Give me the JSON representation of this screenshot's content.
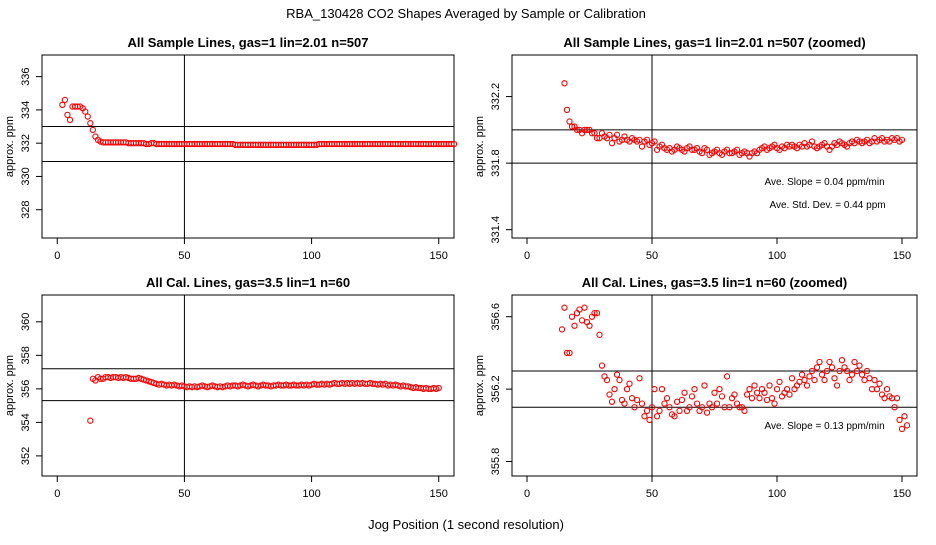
{
  "page": {
    "title": "RBA_130428  CO2 Shapes Averaged by Sample or Calibration",
    "xlabel": "Jog Position (1 second resolution)"
  },
  "chart_data": [
    {
      "type": "scatter",
      "title": "All Sample Lines, gas=1 lin=2.01 n=507",
      "ylabel": "approx. ppm",
      "xlim": [
        -6,
        156
      ],
      "ylim": [
        326.3,
        337.3
      ],
      "xticks": [
        0,
        50,
        100,
        150
      ],
      "yticks": [
        328,
        330,
        332,
        334,
        336
      ],
      "ytick_labels": [
        "328",
        "330",
        "332",
        "334",
        "336"
      ],
      "hlines": [
        333.0,
        330.9
      ],
      "vline": 50,
      "color": "#ff0000",
      "annotations": [],
      "x_start": 2,
      "values": [
        334.3,
        334.6,
        333.7,
        333.4,
        334.2,
        334.2,
        334.2,
        334.2,
        334.1,
        333.9,
        333.6,
        333.2,
        332.8,
        332.4,
        332.2,
        332.1,
        332.05,
        332.05,
        332.05,
        332.05,
        332.05,
        332.05,
        332.05,
        332.05,
        332.05,
        332.05,
        332.0,
        332.0,
        332.0,
        332.0,
        332.0,
        332.0,
        332.0,
        331.95,
        331.95,
        332.0,
        332.0,
        331.95,
        331.95,
        331.95,
        331.95,
        331.95,
        331.95,
        331.95,
        331.95,
        331.95,
        331.95,
        331.95,
        331.95,
        331.95,
        331.95,
        331.95,
        331.95,
        331.95,
        331.95,
        331.95,
        331.95,
        331.95,
        331.95,
        331.95,
        331.95,
        331.95,
        331.95,
        331.95,
        331.95,
        331.95,
        331.95,
        331.95,
        331.9,
        331.9,
        331.9,
        331.9,
        331.9,
        331.9,
        331.9,
        331.9,
        331.9,
        331.9,
        331.9,
        331.9,
        331.9,
        331.9,
        331.9,
        331.9,
        331.9,
        331.9,
        331.9,
        331.9,
        331.9,
        331.9,
        331.9,
        331.9,
        331.9,
        331.9,
        331.9,
        331.9,
        331.9,
        331.9,
        331.9,
        331.9,
        331.9,
        331.95,
        331.95,
        331.95,
        331.95,
        331.95,
        331.95,
        331.95,
        331.95,
        331.95,
        331.95,
        331.95,
        331.95,
        331.95,
        331.95,
        331.95,
        331.95,
        331.95,
        331.95,
        331.95,
        331.95,
        331.95,
        331.95,
        331.95,
        331.95,
        331.95,
        331.95,
        331.95,
        331.95,
        331.95,
        331.95,
        331.95,
        331.95,
        331.95,
        331.95,
        331.95,
        331.95,
        331.95,
        331.95,
        331.95,
        331.95,
        331.95,
        331.95,
        331.95,
        331.95,
        331.95,
        331.95,
        331.95,
        331.95,
        331.95,
        331.95,
        331.95,
        331.95,
        331.95,
        331.95
      ]
    },
    {
      "type": "scatter",
      "title": "All Sample Lines, gas=1 lin=2.01 n=507 (zoomed)",
      "ylabel": "approx. ppm",
      "xlim": [
        -6,
        156
      ],
      "ylim": [
        331.35,
        332.45
      ],
      "xticks": [
        0,
        50,
        100,
        150
      ],
      "yticks": [
        331.4,
        331.8,
        332.2
      ],
      "ytick_labels": [
        "331.4",
        "331.8",
        "332.2"
      ],
      "hlines": [
        332.0,
        331.8
      ],
      "vline": 50,
      "color": "#ff0000",
      "annotations": [
        {
          "text": "Ave. Slope =  0.04  ppm/min",
          "x": 95,
          "y": 331.67
        },
        {
          "text": "Ave. Std. Dev. =  0.44  ppm",
          "x": 97,
          "y": 331.53
        }
      ],
      "x_start": 15,
      "values": [
        332.28,
        332.12,
        332.05,
        332.02,
        332.02,
        332.0,
        332.0,
        331.98,
        332.0,
        332.0,
        332.0,
        331.98,
        331.98,
        331.95,
        331.95,
        331.98,
        331.96,
        331.95,
        331.97,
        331.92,
        331.95,
        331.97,
        331.93,
        331.94,
        331.96,
        331.94,
        331.93,
        331.95,
        331.94,
        331.93,
        331.94,
        331.9,
        331.93,
        331.94,
        331.91,
        331.92,
        331.93,
        331.88,
        331.9,
        331.91,
        331.89,
        331.88,
        331.89,
        331.87,
        331.88,
        331.9,
        331.89,
        331.88,
        331.87,
        331.89,
        331.9,
        331.88,
        331.88,
        331.89,
        331.87,
        331.86,
        331.89,
        331.88,
        331.85,
        331.86,
        331.87,
        331.88,
        331.86,
        331.85,
        331.87,
        331.88,
        331.86,
        331.86,
        331.87,
        331.88,
        331.85,
        331.86,
        331.87,
        331.86,
        331.84,
        331.86,
        331.87,
        331.86,
        331.88,
        331.89,
        331.9,
        331.88,
        331.89,
        331.9,
        331.91,
        331.89,
        331.88,
        331.9,
        331.89,
        331.91,
        331.9,
        331.91,
        331.9,
        331.89,
        331.91,
        331.9,
        331.92,
        331.9,
        331.91,
        331.93,
        331.9,
        331.89,
        331.9,
        331.91,
        331.92,
        331.9,
        331.88,
        331.9,
        331.92,
        331.91,
        331.93,
        331.92,
        331.91,
        331.9,
        331.92,
        331.93,
        331.92,
        331.94,
        331.93,
        331.92,
        331.93,
        331.94,
        331.92,
        331.93,
        331.95,
        331.93,
        331.94,
        331.95,
        331.93,
        331.94,
        331.93,
        331.95,
        331.94,
        331.95,
        331.93,
        331.94
      ]
    },
    {
      "type": "scatter",
      "title": "All Cal. Lines, gas=3.5 lin=1 n=60",
      "ylabel": "approx. ppm",
      "xlim": [
        -6,
        156
      ],
      "ylim": [
        350.8,
        361.6
      ],
      "xticks": [
        0,
        50,
        100,
        150
      ],
      "yticks": [
        352,
        354,
        356,
        358,
        360
      ],
      "ytick_labels": [
        "352",
        "354",
        "356",
        "358",
        "360"
      ],
      "hlines": [
        357.2,
        355.3
      ],
      "vline": 50,
      "color": "#ff0000",
      "annotations": [],
      "x_start": 13,
      "values": [
        354.1,
        356.6,
        356.5,
        356.7,
        356.6,
        356.6,
        356.7,
        356.7,
        356.65,
        356.7,
        356.7,
        356.65,
        356.7,
        356.65,
        356.7,
        356.65,
        356.6,
        356.6,
        356.6,
        356.65,
        356.6,
        356.55,
        356.5,
        356.45,
        356.4,
        356.35,
        356.3,
        356.25,
        356.3,
        356.25,
        356.2,
        356.25,
        356.2,
        356.25,
        356.2,
        356.15,
        356.2,
        356.15,
        356.1,
        356.15,
        356.1,
        356.15,
        356.1,
        356.15,
        356.2,
        356.15,
        356.1,
        356.15,
        356.2,
        356.15,
        356.1,
        356.15,
        356.1,
        356.15,
        356.2,
        356.15,
        356.2,
        356.2,
        356.15,
        356.2,
        356.25,
        356.2,
        356.15,
        356.2,
        356.25,
        356.2,
        356.15,
        356.2,
        356.25,
        356.2,
        356.2,
        356.15,
        356.2,
        356.2,
        356.25,
        356.2,
        356.2,
        356.25,
        356.2,
        356.2,
        356.25,
        356.2,
        356.2,
        356.25,
        356.2,
        356.25,
        356.2,
        356.25,
        356.3,
        356.25,
        356.25,
        356.3,
        356.25,
        356.3,
        356.25,
        356.3,
        356.35,
        356.3,
        356.3,
        356.35,
        356.3,
        356.35,
        356.3,
        356.35,
        356.3,
        356.35,
        356.3,
        356.35,
        356.3,
        356.3,
        356.35,
        356.3,
        356.3,
        356.25,
        356.3,
        356.25,
        356.3,
        356.2,
        356.25,
        356.2,
        356.25,
        356.2,
        356.15,
        356.2,
        356.15,
        356.15,
        356.1,
        356.05,
        356.1,
        356.05,
        356.05,
        356.0,
        356.05,
        356.0,
        356.0,
        356.05,
        356.0,
        356.05
      ]
    },
    {
      "type": "scatter",
      "title": "All Cal. Lines, gas=3.5 lin=1 n=60 (zoomed)",
      "ylabel": "approx. ppm",
      "xlim": [
        -6,
        156
      ],
      "ylim": [
        355.72,
        356.72
      ],
      "xticks": [
        0,
        50,
        100,
        150
      ],
      "yticks": [
        355.8,
        356.2,
        356.6
      ],
      "ytick_labels": [
        "355.8",
        "356.2",
        "356.6"
      ],
      "hlines": [
        356.3,
        356.1
      ],
      "vline": 50,
      "color": "#ff0000",
      "annotations": [
        {
          "text": "Ave. Slope =  0.13  ppm/min",
          "x": 95,
          "y": 355.98
        }
      ],
      "x_start": 14,
      "values": [
        356.53,
        356.65,
        356.4,
        356.4,
        356.6,
        356.55,
        356.62,
        356.64,
        356.58,
        356.65,
        356.57,
        356.55,
        356.6,
        356.62,
        356.62,
        356.5,
        356.33,
        356.27,
        356.25,
        356.17,
        356.13,
        356.2,
        356.28,
        356.25,
        356.14,
        356.12,
        356.2,
        356.23,
        356.15,
        356.1,
        356.14,
        356.26,
        356.12,
        356.05,
        356.08,
        356.03,
        356.1,
        356.2,
        356.05,
        356.08,
        356.2,
        356.12,
        356.15,
        356.1,
        356.06,
        356.05,
        356.13,
        356.08,
        356.14,
        356.18,
        356.08,
        356.1,
        356.16,
        356.2,
        356.12,
        356.08,
        356.1,
        356.22,
        356.07,
        356.12,
        356.1,
        356.18,
        356.12,
        356.2,
        356.16,
        356.1,
        356.27,
        356.1,
        356.15,
        356.17,
        356.12,
        356.1,
        356.1,
        356.08,
        356.17,
        356.2,
        356.15,
        356.22,
        356.18,
        356.15,
        356.2,
        356.18,
        356.14,
        356.22,
        356.15,
        356.12,
        356.2,
        356.24,
        356.16,
        356.18,
        356.2,
        356.17,
        356.26,
        356.2,
        356.22,
        356.24,
        356.28,
        356.25,
        356.22,
        356.27,
        356.3,
        356.25,
        356.32,
        356.35,
        356.28,
        356.25,
        356.3,
        356.35,
        356.32,
        356.26,
        356.22,
        356.3,
        356.36,
        356.32,
        356.3,
        356.25,
        356.28,
        356.35,
        356.3,
        356.33,
        356.28,
        356.25,
        356.3,
        356.26,
        356.2,
        356.25,
        356.2,
        356.23,
        356.17,
        356.15,
        356.2,
        356.16,
        356.15,
        356.1,
        356.15,
        356.03,
        355.98,
        356.05,
        356.0
      ]
    }
  ]
}
